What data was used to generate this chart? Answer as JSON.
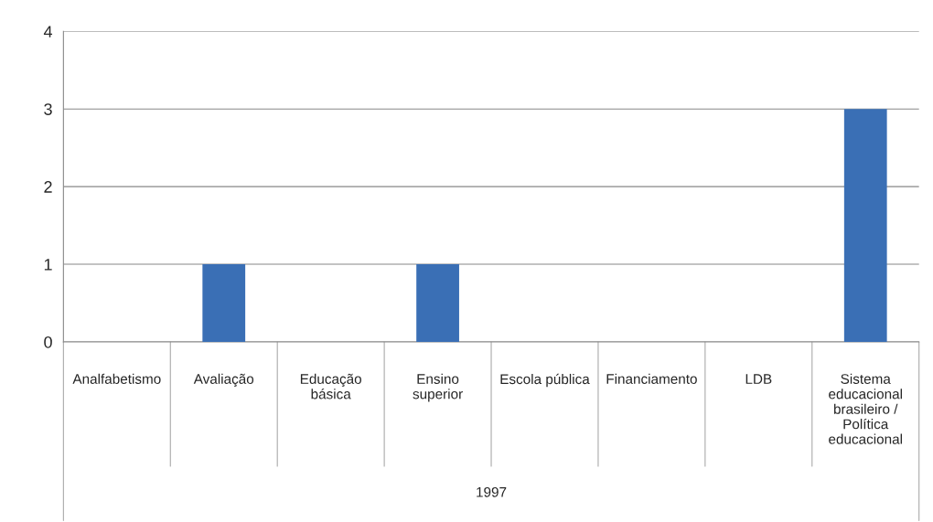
{
  "chart_data": {
    "type": "bar",
    "categories": [
      "Analfabetismo",
      "Avaliação",
      "Educação\nbásica",
      "Ensino\nsuperior",
      "Escola pública",
      "Financiamento",
      "LDB",
      "Sistema\neducacional\nbrasileiro /\nPolítica\neducacional"
    ],
    "values": [
      0,
      1,
      0,
      1,
      0,
      0,
      0,
      3
    ],
    "color": "#3a6fb5",
    "ylim": [
      0,
      4
    ],
    "yticks": [
      0,
      1,
      2,
      3,
      4
    ],
    "grid": "y",
    "annotations": [
      "1997"
    ]
  }
}
